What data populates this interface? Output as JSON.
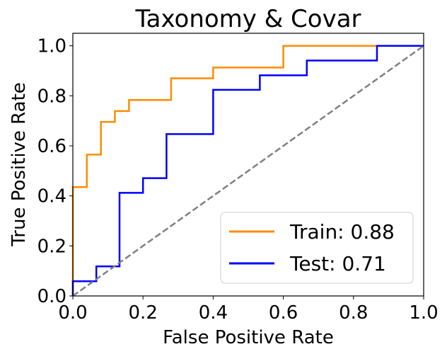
{
  "chart_data": {
    "type": "line",
    "title": "Taxonomy & Covar",
    "xlabel": "False Positive Rate",
    "ylabel": "True Positive Rate",
    "xlim": [
      0.0,
      1.0
    ],
    "ylim": [
      0.0,
      1.05
    ],
    "xticks": [
      0.0,
      0.2,
      0.4,
      0.6,
      0.8,
      1.0
    ],
    "yticks": [
      0.0,
      0.2,
      0.4,
      0.6,
      0.8,
      1.0
    ],
    "xtick_labels": [
      "0.0",
      "0.2",
      "0.4",
      "0.6",
      "0.8",
      "1.0"
    ],
    "ytick_labels": [
      "0.0",
      "0.2",
      "0.4",
      "0.6",
      "0.8",
      "1.0"
    ],
    "grid": false,
    "legend_position": "bottom-right",
    "series": [
      {
        "name": "Train: 0.88",
        "color": "#ff8c00",
        "x": [
          0.0,
          0.0,
          0.04,
          0.04,
          0.08,
          0.08,
          0.12,
          0.12,
          0.16,
          0.16,
          0.28,
          0.28,
          0.4,
          0.4,
          0.6,
          0.6,
          0.88
        ],
        "y": [
          0.0,
          0.435,
          0.435,
          0.565,
          0.565,
          0.696,
          0.696,
          0.739,
          0.739,
          0.783,
          0.783,
          0.87,
          0.87,
          0.913,
          0.913,
          1.0,
          1.0
        ]
      },
      {
        "name": "Test: 0.71",
        "color": "#0000ff",
        "x": [
          0.0,
          0.0,
          0.067,
          0.067,
          0.133,
          0.133,
          0.2,
          0.2,
          0.267,
          0.267,
          0.4,
          0.4,
          0.533,
          0.533,
          0.667,
          0.667,
          0.867,
          0.867,
          1.0
        ],
        "y": [
          0.0,
          0.059,
          0.059,
          0.118,
          0.118,
          0.412,
          0.412,
          0.471,
          0.471,
          0.647,
          0.647,
          0.824,
          0.824,
          0.882,
          0.882,
          0.941,
          0.941,
          1.0,
          1.0
        ]
      },
      {
        "color": "#808080",
        "dashed": true,
        "x": [
          0.0,
          1.0
        ],
        "y": [
          0.0,
          1.0
        ]
      }
    ]
  }
}
